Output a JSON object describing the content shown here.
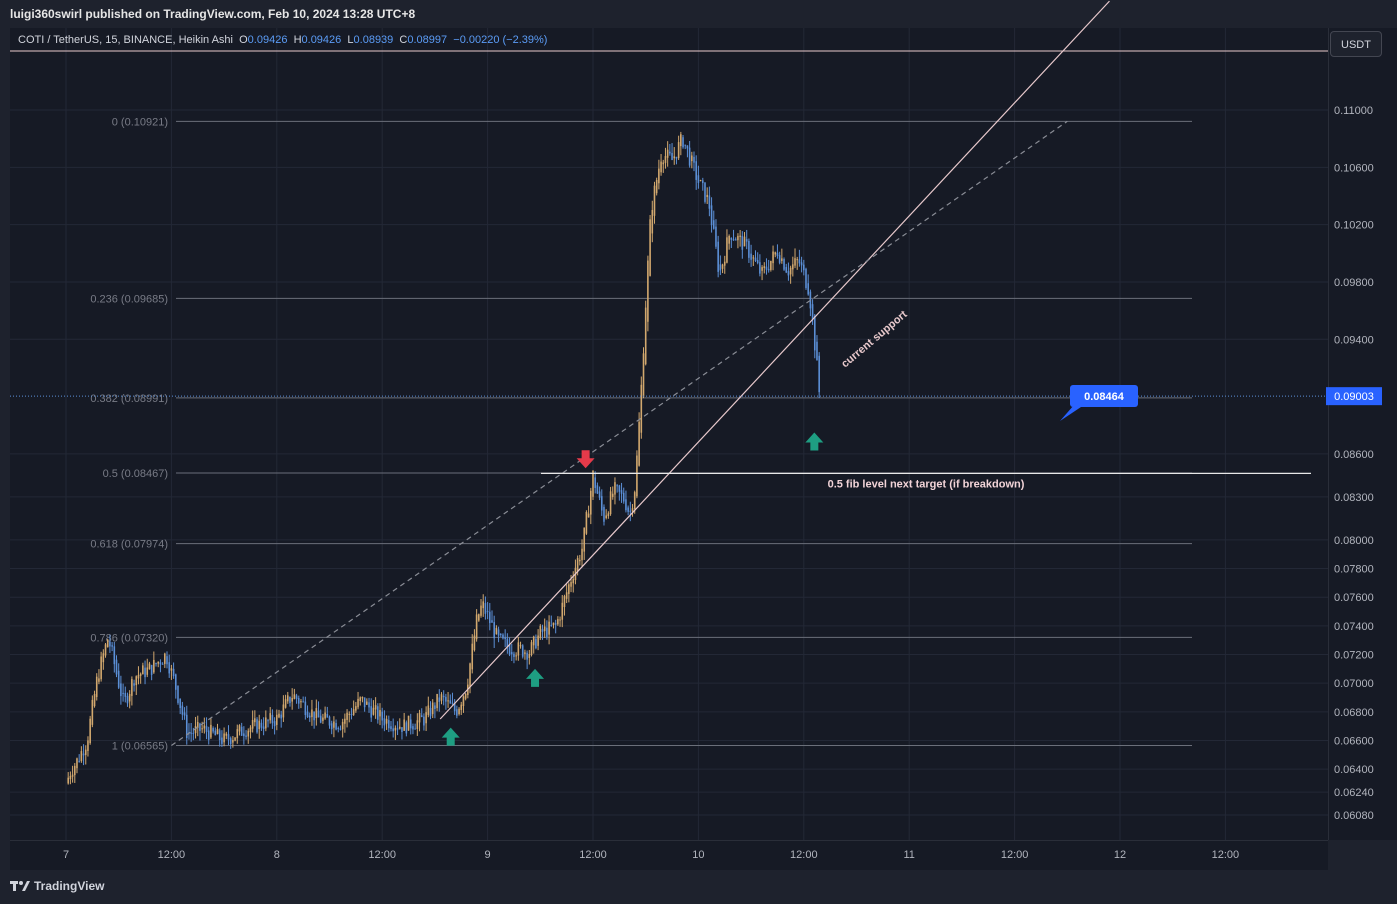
{
  "header": {
    "published": "luigi360swirl published on TradingView.com, Feb 10, 2024 13:28 UTC+8"
  },
  "legend": {
    "symbol": "COTI / TetherUS, 15, BINANCE, Heikin Ashi",
    "o_label": "O",
    "o": "0.09426",
    "h_label": "H",
    "h": "0.09426",
    "l_label": "L",
    "l": "0.08939",
    "c_label": "C",
    "c": "0.08997",
    "change": "−0.00220 (−2.39%)"
  },
  "currency_button": "USDT",
  "footer": {
    "brand": "TradingView"
  },
  "colors": {
    "background": "#161a25",
    "up_candle": "#d2a86e",
    "down_candle": "#5b8fd6",
    "trendline": "#e8c9cc",
    "fib_line": "#6b6f7a",
    "price_marker": "#2962ff",
    "arrow_up": "#1e9e82",
    "arrow_down": "#e53a4a"
  },
  "chart_data": {
    "type": "candlestick",
    "price_scale": [
      0.11,
      0.106,
      0.102,
      0.098,
      0.094,
      0.086,
      0.083,
      0.08,
      0.078,
      0.076,
      0.074,
      0.072,
      0.07,
      0.068,
      0.066,
      0.064,
      0.0624,
      0.0608
    ],
    "price_ticks": [
      "0.11000",
      "0.10600",
      "0.10200",
      "0.09800",
      "0.09400",
      "0.08600",
      "0.08300",
      "0.08000",
      "0.07800",
      "0.07600",
      "0.07400",
      "0.07200",
      "0.07000",
      "0.06800",
      "0.06600",
      "0.06400",
      "0.06240",
      "0.06080"
    ],
    "time_ticks": [
      {
        "label": "7",
        "t": 0
      },
      {
        "label": "12:00",
        "t": 1
      },
      {
        "label": "8",
        "t": 2
      },
      {
        "label": "12:00",
        "t": 3
      },
      {
        "label": "9",
        "t": 4
      },
      {
        "label": "12:00",
        "t": 5
      },
      {
        "label": "10",
        "t": 6
      },
      {
        "label": "12:00",
        "t": 7
      },
      {
        "label": "11",
        "t": 8
      },
      {
        "label": "12:00",
        "t": 9
      },
      {
        "label": "12",
        "t": 10
      },
      {
        "label": "12:00",
        "t": 11
      }
    ],
    "fib_levels": [
      {
        "label": "0 (0.10921)",
        "value": 0.10921
      },
      {
        "label": "0.236 (0.09685)",
        "value": 0.09685
      },
      {
        "label": "0.382 (0.08991)",
        "value": 0.08991
      },
      {
        "label": "0.5 (0.08467)",
        "value": 0.08467
      },
      {
        "label": "0.618 (0.07974)",
        "value": 0.07974
      },
      {
        "label": "0.786 (0.07320)",
        "value": 0.0732
      },
      {
        "label": "1 (0.06565)",
        "value": 0.06565
      }
    ],
    "current_price": {
      "label": "0.09003",
      "value": 0.09003
    },
    "callout": {
      "label": "0.08464",
      "value": 0.08464
    },
    "annotations": {
      "support_label": "current support",
      "target_label": "0.5 fib level next target (if breakdown)"
    },
    "price_path": [
      {
        "t": 0.0,
        "p": 0.063
      },
      {
        "t": 0.05,
        "p": 0.064
      },
      {
        "t": 0.1,
        "p": 0.0645
      },
      {
        "t": 0.2,
        "p": 0.066
      },
      {
        "t": 0.3,
        "p": 0.0705
      },
      {
        "t": 0.4,
        "p": 0.0732
      },
      {
        "t": 0.5,
        "p": 0.07
      },
      {
        "t": 0.55,
        "p": 0.0685
      },
      {
        "t": 0.65,
        "p": 0.0705
      },
      {
        "t": 0.8,
        "p": 0.071
      },
      {
        "t": 0.95,
        "p": 0.072
      },
      {
        "t": 1.05,
        "p": 0.0695
      },
      {
        "t": 1.15,
        "p": 0.0665
      },
      {
        "t": 1.3,
        "p": 0.0668
      },
      {
        "t": 1.5,
        "p": 0.066
      },
      {
        "t": 1.7,
        "p": 0.0668
      },
      {
        "t": 2.0,
        "p": 0.0675
      },
      {
        "t": 2.15,
        "p": 0.0692
      },
      {
        "t": 2.4,
        "p": 0.0675
      },
      {
        "t": 2.6,
        "p": 0.0672
      },
      {
        "t": 2.8,
        "p": 0.0688
      },
      {
        "t": 3.0,
        "p": 0.0675
      },
      {
        "t": 3.2,
        "p": 0.067
      },
      {
        "t": 3.4,
        "p": 0.0675
      },
      {
        "t": 3.55,
        "p": 0.069
      },
      {
        "t": 3.7,
        "p": 0.068
      },
      {
        "t": 3.8,
        "p": 0.0698
      },
      {
        "t": 3.9,
        "p": 0.0745
      },
      {
        "t": 3.95,
        "p": 0.0755
      },
      {
        "t": 4.1,
        "p": 0.073
      },
      {
        "t": 4.2,
        "p": 0.0725
      },
      {
        "t": 4.4,
        "p": 0.0722
      },
      {
        "t": 4.5,
        "p": 0.0735
      },
      {
        "t": 4.65,
        "p": 0.074
      },
      {
        "t": 4.8,
        "p": 0.0775
      },
      {
        "t": 4.9,
        "p": 0.0795
      },
      {
        "t": 5.0,
        "p": 0.0845
      },
      {
        "t": 5.1,
        "p": 0.0815
      },
      {
        "t": 5.2,
        "p": 0.0835
      },
      {
        "t": 5.3,
        "p": 0.0828
      },
      {
        "t": 5.35,
        "p": 0.0818
      },
      {
        "t": 5.4,
        "p": 0.0838
      },
      {
        "t": 5.45,
        "p": 0.0895
      },
      {
        "t": 5.5,
        "p": 0.0965
      },
      {
        "t": 5.55,
        "p": 0.103
      },
      {
        "t": 5.65,
        "p": 0.107
      },
      {
        "t": 5.75,
        "p": 0.1065
      },
      {
        "t": 5.85,
        "p": 0.108
      },
      {
        "t": 6.0,
        "p": 0.105
      },
      {
        "t": 6.1,
        "p": 0.1035
      },
      {
        "t": 6.2,
        "p": 0.0985
      },
      {
        "t": 6.3,
        "p": 0.1015
      },
      {
        "t": 6.45,
        "p": 0.1005
      },
      {
        "t": 6.6,
        "p": 0.0985
      },
      {
        "t": 6.75,
        "p": 0.1002
      },
      {
        "t": 6.85,
        "p": 0.0988
      },
      {
        "t": 6.95,
        "p": 0.0995
      },
      {
        "t": 7.0,
        "p": 0.0985
      },
      {
        "t": 7.05,
        "p": 0.0975
      },
      {
        "t": 7.1,
        "p": 0.094
      },
      {
        "t": 7.15,
        "p": 0.09
      }
    ],
    "drawn_lines": [
      {
        "kind": "trendline",
        "from": {
          "t": 3.55,
          "p": 0.0675
        },
        "to": {
          "t": 9.9,
          "p": 0.1176
        }
      },
      {
        "kind": "dashed",
        "from": {
          "t": 1.0,
          "p": 0.06565
        },
        "to": {
          "t": 9.5,
          "p": 0.10921
        }
      }
    ],
    "markers": [
      {
        "kind": "up",
        "t": 3.65,
        "p": 0.0662
      },
      {
        "kind": "up",
        "t": 4.45,
        "p": 0.0703
      },
      {
        "kind": "down",
        "t": 4.93,
        "p": 0.0857
      },
      {
        "kind": "up",
        "t": 7.1,
        "p": 0.0868
      }
    ]
  }
}
